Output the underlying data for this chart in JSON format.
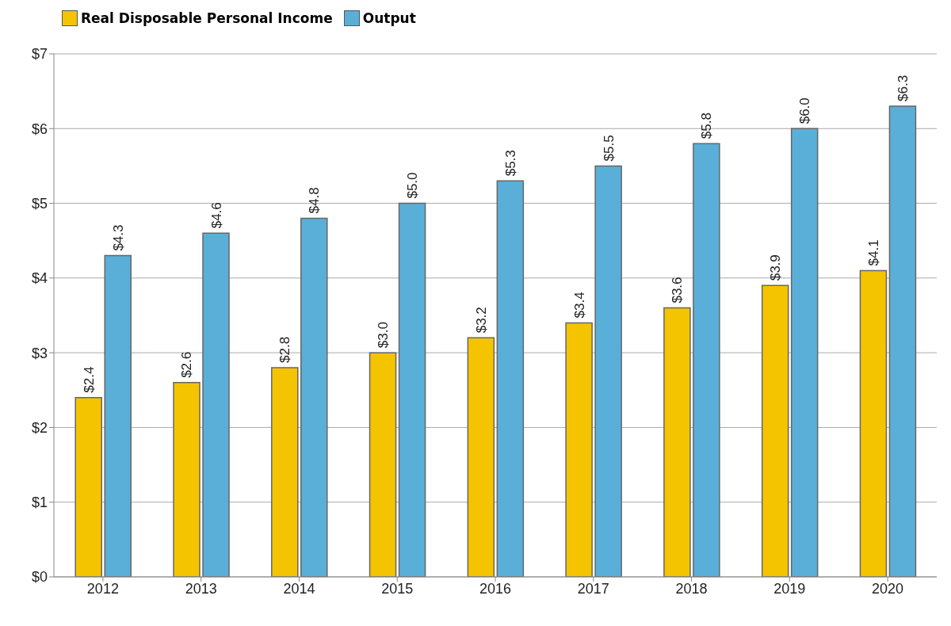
{
  "chart_data": {
    "type": "bar",
    "categories": [
      "2012",
      "2013",
      "2014",
      "2015",
      "2016",
      "2017",
      "2018",
      "2019",
      "2020"
    ],
    "series": [
      {
        "name": "Real Disposable Personal Income",
        "color": "#f5c400",
        "values": [
          2.4,
          2.6,
          2.8,
          3.0,
          3.2,
          3.4,
          3.6,
          3.9,
          4.1
        ],
        "value_labels": [
          "$2.4",
          "$2.6",
          "$2.8",
          "$3.0",
          "$3.2",
          "$3.4",
          "$3.6",
          "$3.9",
          "$4.1"
        ]
      },
      {
        "name": "Output",
        "color": "#5aafd8",
        "values": [
          4.3,
          4.6,
          4.8,
          5.0,
          5.3,
          5.5,
          5.8,
          6.0,
          6.3
        ],
        "value_labels": [
          "$4.3",
          "$4.6",
          "$4.8",
          "$5.0",
          "$5.3",
          "$5.5",
          "$5.8",
          "$6.0",
          "$6.3"
        ]
      }
    ],
    "ylim": [
      0,
      7
    ],
    "yticks": [
      {
        "value": 0,
        "label": "$0"
      },
      {
        "value": 1,
        "label": "$1"
      },
      {
        "value": 2,
        "label": "$2"
      },
      {
        "value": 3,
        "label": "$3"
      },
      {
        "value": 4,
        "label": "$4"
      },
      {
        "value": 5,
        "label": "$5"
      },
      {
        "value": 6,
        "label": "$6"
      },
      {
        "value": 7,
        "label": "$7"
      }
    ],
    "grid": "y",
    "legend": "top left"
  }
}
